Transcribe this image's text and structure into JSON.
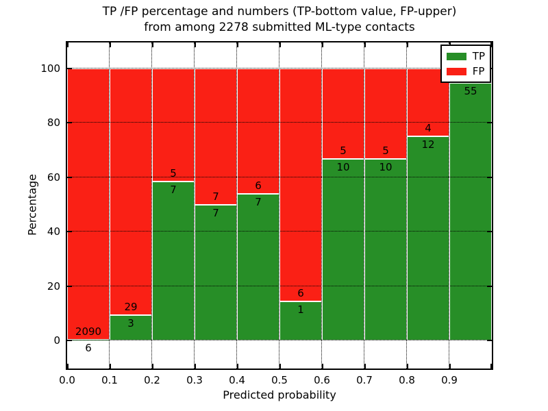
{
  "chart_data": {
    "type": "bar",
    "stacked": true,
    "orientation": "vertical",
    "title_lines": [
      "TP /FP percentage and numbers (TP-bottom value, FP-upper)",
      "from among 2278 submitted ML-type contacts"
    ],
    "xlabel": "Predicted probability",
    "ylabel": "Percentage",
    "x_tick_labels": [
      "0.0",
      "0.1",
      "0.2",
      "0.3",
      "0.4",
      "0.5",
      "0.6",
      "0.7",
      "0.8",
      "0.9"
    ],
    "y_tick_labels": [
      "0",
      "20",
      "40",
      "60",
      "80",
      "100"
    ],
    "y_tick_values": [
      0,
      20,
      40,
      60,
      80,
      100
    ],
    "ylim_percent": [
      0,
      100
    ],
    "grid_style": "dotted",
    "colors": {
      "tp": "#278e27",
      "fp": "#fa2015"
    },
    "legend": {
      "position": "upper right",
      "entries": [
        {
          "label": "TP",
          "color": "#278e27"
        },
        {
          "label": "FP",
          "color": "#fa2015"
        }
      ]
    },
    "bins": [
      {
        "x_range": "0.0-0.1",
        "tp": 6,
        "fp": 2090,
        "tp_label": "6",
        "fp_label": "2090",
        "tp_pct": 0.29
      },
      {
        "x_range": "0.1-0.2",
        "tp": 3,
        "fp": 29,
        "tp_label": "3",
        "fp_label": "29",
        "tp_pct": 9.38
      },
      {
        "x_range": "0.2-0.3",
        "tp": 7,
        "fp": 5,
        "tp_label": "7",
        "fp_label": "5",
        "tp_pct": 58.33
      },
      {
        "x_range": "0.3-0.4",
        "tp": 7,
        "fp": 7,
        "tp_label": "7",
        "fp_label": "7",
        "tp_pct": 50.0
      },
      {
        "x_range": "0.4-0.5",
        "tp": 7,
        "fp": 6,
        "tp_label": "7",
        "fp_label": "6",
        "tp_pct": 53.85
      },
      {
        "x_range": "0.5-0.6",
        "tp": 1,
        "fp": 6,
        "tp_label": "1",
        "fp_label": "6",
        "tp_pct": 14.29
      },
      {
        "x_range": "0.6-0.7",
        "tp": 10,
        "fp": 5,
        "tp_label": "10",
        "fp_label": "5",
        "tp_pct": 66.67
      },
      {
        "x_range": "0.7-0.8",
        "tp": 10,
        "fp": 5,
        "tp_label": "10",
        "fp_label": "5",
        "tp_pct": 66.67
      },
      {
        "x_range": "0.8-0.9",
        "tp": 12,
        "fp": 4,
        "tp_label": "12",
        "fp_label": "4",
        "tp_pct": 75.0
      },
      {
        "x_range": "0.9-1.0",
        "tp": 55,
        "fp": null,
        "tp_label": "55",
        "fp_label": "",
        "tp_pct": 94.83
      }
    ]
  }
}
